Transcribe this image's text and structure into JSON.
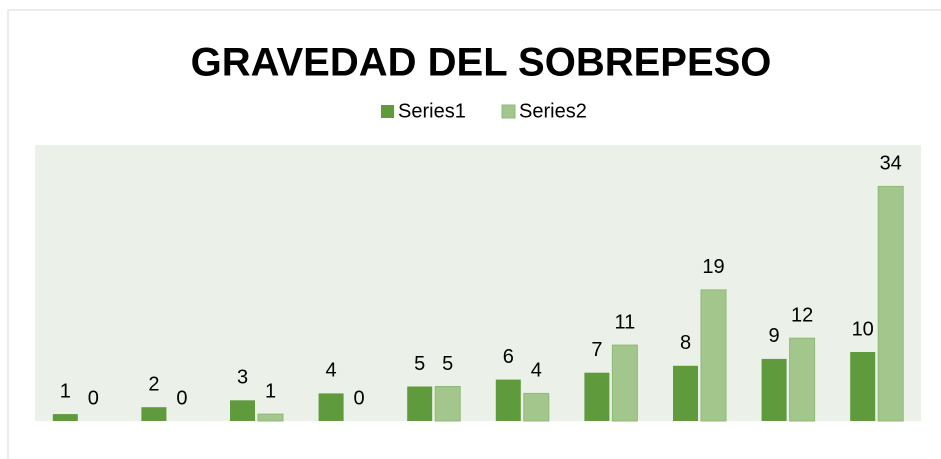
{
  "chart_data": {
    "type": "bar",
    "title": "GRAVEDAD DEL SOBREPESO",
    "categories": [
      null,
      null,
      null,
      null,
      null,
      null,
      null,
      null,
      null,
      null
    ],
    "series": [
      {
        "name": "Series1",
        "color": "#5f9a3d",
        "values": [
          1,
          2,
          3,
          4,
          5,
          6,
          7,
          8,
          9,
          10
        ]
      },
      {
        "name": "Series2",
        "color": "#a3c68c",
        "values": [
          0,
          0,
          1,
          0,
          5,
          4,
          11,
          19,
          12,
          34
        ]
      }
    ],
    "ylim": [
      0,
      40
    ],
    "legend": "top"
  }
}
